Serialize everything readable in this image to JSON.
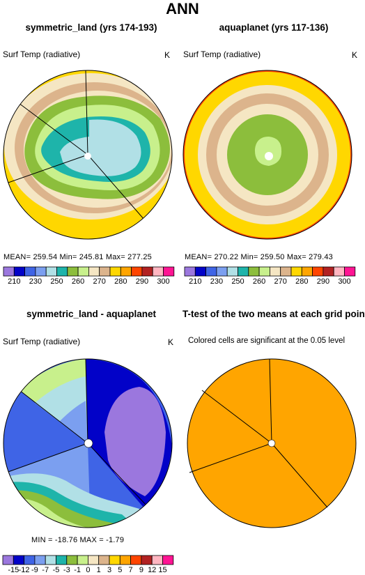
{
  "main_title": "ANN",
  "panels": {
    "p1": {
      "title": "symmetric_land (yrs 174-193)",
      "var": "Surf Temp (radiative)",
      "unit": "K",
      "stats": "MEAN=  259.54   Min=  245.81   Max=  277.25"
    },
    "p2": {
      "title": "aquaplanet (yrs 117-136)",
      "var": "Surf Temp (radiative)",
      "unit": "K",
      "stats": "MEAN=  270.22   Min=  259.50   Max=  279.43"
    },
    "p3": {
      "title": "symmetric_land - aquaplanet",
      "var": "Surf Temp (radiative)",
      "unit": "K",
      "stats": "MIN =  -18.76  MAX =   -1.79"
    },
    "p4": {
      "title": "T-test of the two means at each grid point",
      "note": "Colored cells are significant at the 0.05 level"
    }
  },
  "colorbars": {
    "abs": {
      "colors": [
        "#9b77de",
        "#0202c8",
        "#3f64e6",
        "#7b9ff0",
        "#b1e0e6",
        "#1eb4aa",
        "#8cbe3c",
        "#c8f08c",
        "#f5e6c3",
        "#dcb48c",
        "#ffd700",
        "#ffa500",
        "#ff4500",
        "#b22222",
        "#ffb6c1",
        "#ff1493"
      ],
      "labels": [
        "210",
        "230",
        "250",
        "260",
        "270",
        "280",
        "290",
        "300"
      ]
    },
    "diff": {
      "colors": [
        "#9b77de",
        "#0202c8",
        "#3f64e6",
        "#7b9ff0",
        "#b1e0e6",
        "#1eb4aa",
        "#8cbe3c",
        "#c8f08c",
        "#f5e6c3",
        "#dcb48c",
        "#ffd700",
        "#ffa500",
        "#ff4500",
        "#b22222",
        "#ffb6c1",
        "#ff1493"
      ],
      "labels": [
        "-15",
        "-12",
        "-9",
        "-7",
        "-5",
        "-3",
        "-1",
        "0",
        "1",
        "3",
        "5",
        "7",
        "9",
        "12",
        "15"
      ]
    }
  },
  "chart_data": [
    {
      "type": "heatmap",
      "title": "symmetric_land (yrs 174-193)",
      "variable": "Surf Temp (radiative)",
      "units": "K",
      "stats": {
        "mean": 259.54,
        "min": 245.81,
        "max": 277.25
      },
      "contour_levels": [
        210,
        220,
        230,
        240,
        250,
        255,
        260,
        265,
        270,
        275,
        280,
        285,
        290,
        295,
        300
      ]
    },
    {
      "type": "heatmap",
      "title": "aquaplanet (yrs 117-136)",
      "variable": "Surf Temp (radiative)",
      "units": "K",
      "stats": {
        "mean": 270.22,
        "min": 259.5,
        "max": 279.43
      },
      "contour_levels": [
        210,
        220,
        230,
        240,
        250,
        255,
        260,
        265,
        270,
        275,
        280,
        285,
        290,
        295,
        300
      ]
    },
    {
      "type": "heatmap",
      "title": "symmetric_land - aquaplanet",
      "variable": "Surf Temp (radiative)",
      "units": "K",
      "stats": {
        "min": -18.76,
        "max": -1.79
      },
      "contour_levels": [
        -15,
        -12,
        -9,
        -7,
        -5,
        -3,
        -1,
        0,
        1,
        3,
        5,
        7,
        9,
        12,
        15
      ]
    },
    {
      "type": "heatmap",
      "title": "T-test of the two means at each grid point",
      "note": "Colored cells are significant at the 0.05 level",
      "significance_level": 0.05
    }
  ]
}
